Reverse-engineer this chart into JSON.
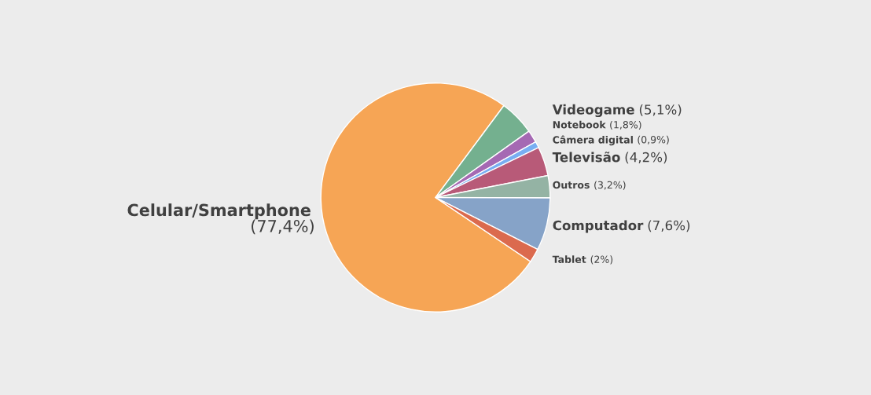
{
  "chart_data": {
    "type": "pie",
    "categories": [
      "Celular/Smartphone",
      "Videogame",
      "Notebook",
      "Câmera digital",
      "Televisão",
      "Outros",
      "Computador",
      "Tablet"
    ],
    "values": [
      77.4,
      5.1,
      1.8,
      0.9,
      4.2,
      3.2,
      7.6,
      2
    ],
    "value_labels": [
      "(77,4%)",
      "(5,1%)",
      "(1,8%)",
      "(0,9%)",
      "(4,2%)",
      "(3,2%)",
      "(7,6%)",
      "(2%)"
    ],
    "colors": [
      "#f6a555",
      "#74b08f",
      "#a569b3",
      "#78aef2",
      "#b85a78",
      "#94b3a4",
      "#86a3c8",
      "#db6a4e"
    ],
    "legend": false
  }
}
